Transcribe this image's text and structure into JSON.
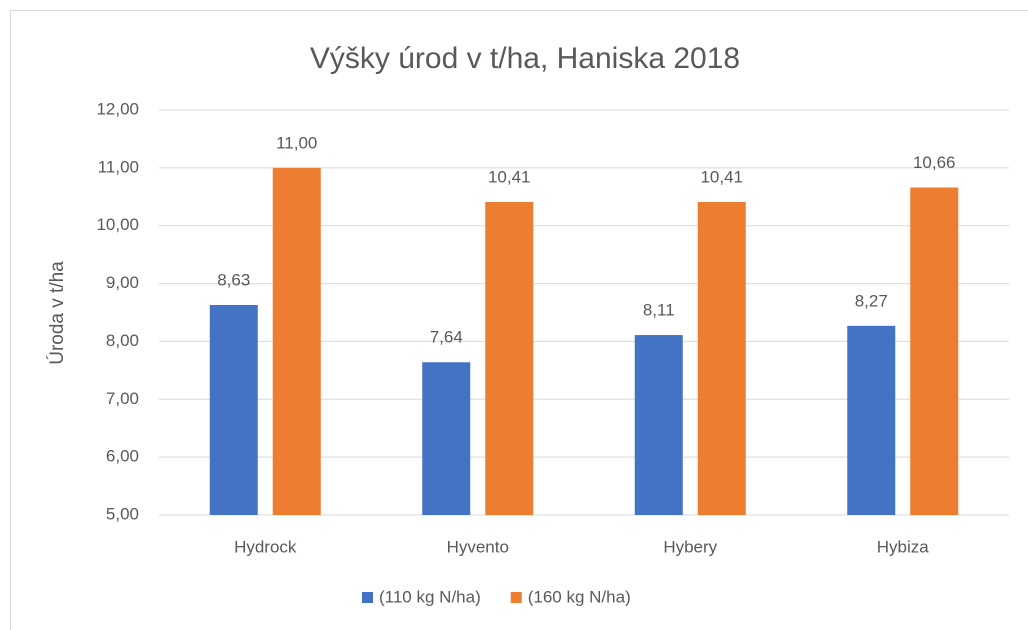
{
  "chart_data": {
    "type": "bar",
    "title": "Výšky úrod v t/ha, Haniska 2018",
    "y_label": "Úroda v t/ha",
    "categories": [
      "Hydrock",
      "Hyvento",
      "Hybery",
      "Hybiza"
    ],
    "series": [
      {
        "name": "(110 kg N/ha)",
        "color": "#4472c4",
        "values": [
          8.63,
          7.64,
          8.11,
          8.27
        ],
        "value_labels": [
          "8,63",
          "7,64",
          "8,11",
          "8,27"
        ]
      },
      {
        "name": "(160 kg N/ha)",
        "color": "#ed7d31",
        "values": [
          11.0,
          10.41,
          10.41,
          10.66
        ],
        "value_labels": [
          "11,00",
          "10,41",
          "10,41",
          "10,66"
        ]
      }
    ],
    "ylim": [
      5,
      12
    ],
    "yticks": [
      {
        "value": 5,
        "label": "5,00"
      },
      {
        "value": 6,
        "label": "6,00"
      },
      {
        "value": 7,
        "label": "7,00"
      },
      {
        "value": 8,
        "label": "8,00"
      },
      {
        "value": 9,
        "label": "9,00"
      },
      {
        "value": 10,
        "label": "10,00"
      },
      {
        "value": 11,
        "label": "11,00"
      },
      {
        "value": 12,
        "label": "12,00"
      }
    ],
    "grid": true,
    "legend": "bottom"
  }
}
